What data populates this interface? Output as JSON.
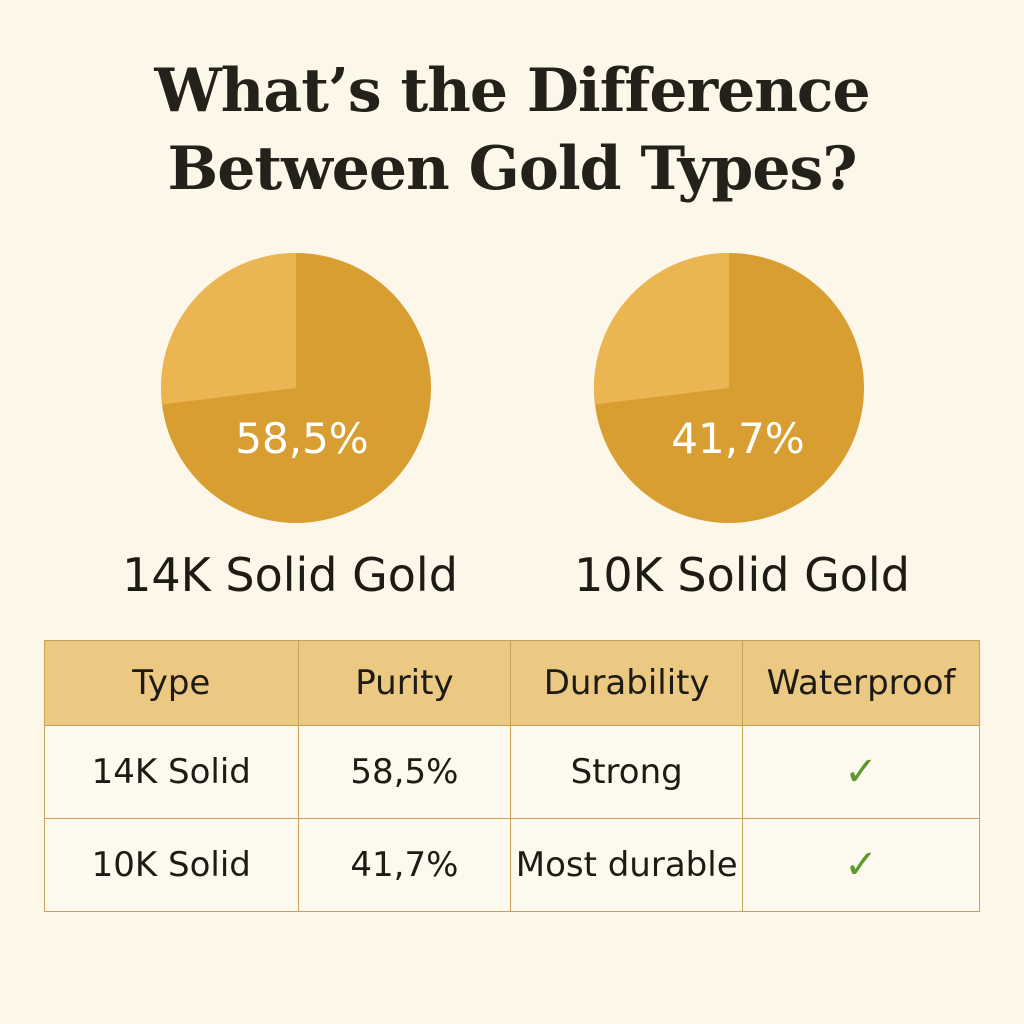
{
  "title": {
    "line1": "What’s the Difference",
    "line2": "Between Gold Types?"
  },
  "colors": {
    "background": "#fdf7e9",
    "pie_dark": "#d99e31",
    "pie_light": "#ebb652",
    "header_bg": "#ecc983",
    "check": "#5d9a2c"
  },
  "chart_data": [
    {
      "type": "pie",
      "title": "14K Solid Gold",
      "label": "58,5%",
      "values": [
        58.5
      ]
    },
    {
      "type": "pie",
      "title": "10K Solid Gold",
      "label": "41,7%",
      "values": [
        41.7
      ]
    }
  ],
  "table": {
    "headers": [
      "Type",
      "Purity",
      "Durability",
      "Waterproof"
    ],
    "rows": [
      {
        "type": "14K Solid",
        "purity": "58,5%",
        "durability": "Strong",
        "waterproof": "✓",
        "waterproof_icon": "check-icon"
      },
      {
        "type": "10K Solid",
        "purity": "41,7%",
        "durability": "Most durable",
        "waterproof": "✓",
        "waterproof_icon": "check-icon"
      }
    ]
  }
}
